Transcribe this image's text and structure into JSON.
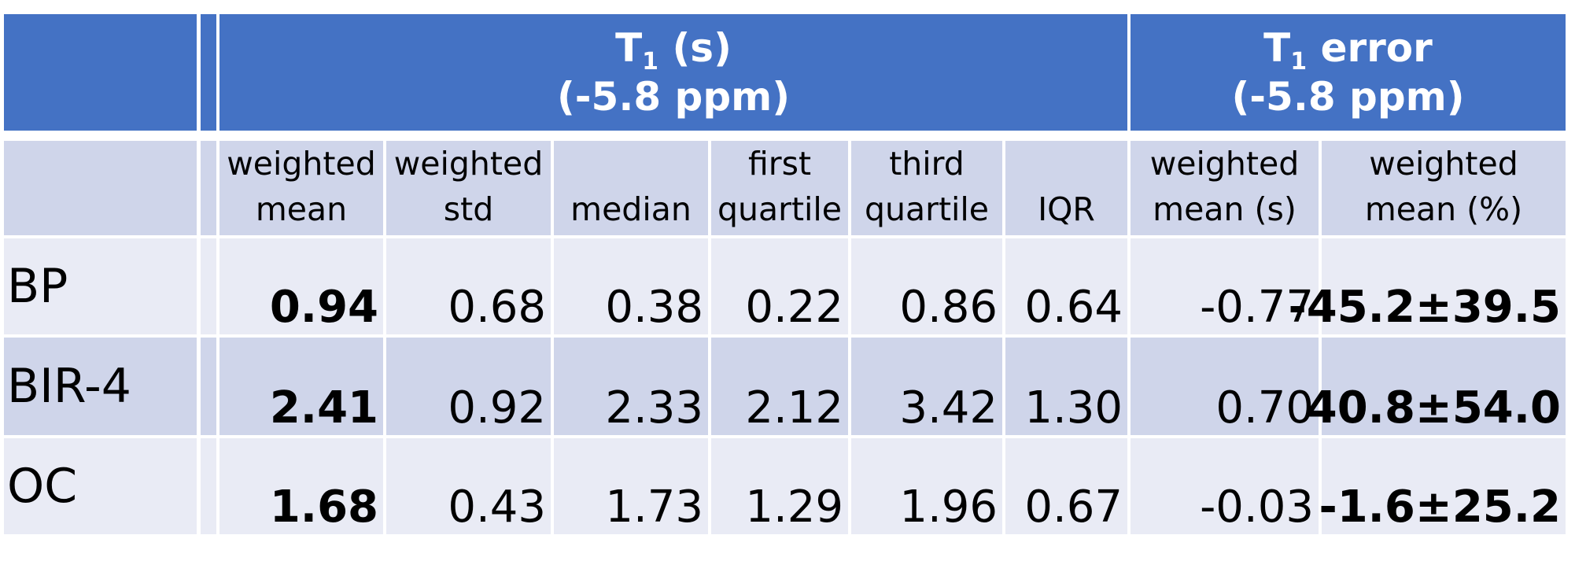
{
  "table": {
    "header": {
      "groups": [
        {
          "symbol": "T",
          "subscript": "1",
          "suffix": " (s)",
          "detail": "(-5.8 ppm)"
        },
        {
          "symbol": "T",
          "subscript": "1",
          "suffix": " error",
          "detail": "(-5.8 ppm)"
        }
      ],
      "columns": [
        [
          "weighted",
          "mean"
        ],
        [
          "weighted",
          "std"
        ],
        [
          "median"
        ],
        [
          "first",
          "quartile"
        ],
        [
          "third",
          "quartile"
        ],
        [
          "IQR"
        ],
        [
          "weighted",
          "mean (s)"
        ],
        [
          "weighted",
          "mean (%)"
        ]
      ]
    },
    "rows": [
      {
        "label": "BP",
        "values": [
          "0.94",
          "0.68",
          "0.38",
          "0.22",
          "0.86",
          "0.64",
          "-0.77",
          "-45.2±39.5"
        ]
      },
      {
        "label": "BIR-4",
        "values": [
          "2.41",
          "0.92",
          "2.33",
          "2.12",
          "3.42",
          "1.30",
          "0.70",
          "40.8±54.0"
        ]
      },
      {
        "label": "OC",
        "values": [
          "1.68",
          "0.43",
          "1.73",
          "1.29",
          "1.96",
          "0.67",
          "-0.03",
          "-1.6±25.2"
        ]
      }
    ]
  }
}
